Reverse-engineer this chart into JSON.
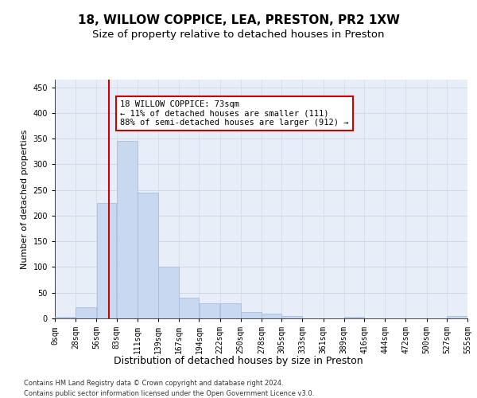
{
  "title": "18, WILLOW COPPICE, LEA, PRESTON, PR2 1XW",
  "subtitle": "Size of property relative to detached houses in Preston",
  "xlabel": "Distribution of detached houses by size in Preston",
  "ylabel": "Number of detached properties",
  "bar_color": "#c8d8f0",
  "bar_edge_color": "#a0b8d8",
  "vline_x": 73,
  "vline_color": "#cc0000",
  "annotation_line1": "18 WILLOW COPPICE: 73sqm",
  "annotation_line2": "← 11% of detached houses are smaller (111)",
  "annotation_line3": "88% of semi-detached houses are larger (912) →",
  "annotation_box_facecolor": "#ffffff",
  "annotation_box_edgecolor": "#cc0000",
  "bins": [
    0,
    28,
    56,
    83,
    111,
    139,
    167,
    194,
    222,
    250,
    278,
    305,
    333,
    361,
    389,
    416,
    444,
    472,
    500,
    527,
    555
  ],
  "bar_heights": [
    3,
    22,
    225,
    345,
    245,
    100,
    40,
    30,
    29,
    13,
    9,
    4,
    0,
    0,
    3,
    0,
    0,
    0,
    0,
    4
  ],
  "ylim": [
    0,
    465
  ],
  "yticks": [
    0,
    50,
    100,
    150,
    200,
    250,
    300,
    350,
    400,
    450
  ],
  "grid_color": "#d0d8e8",
  "plot_bg_color": "#e8eef8",
  "fig_bg_color": "#ffffff",
  "footnote1": "Contains HM Land Registry data © Crown copyright and database right 2024.",
  "footnote2": "Contains public sector information licensed under the Open Government Licence v3.0.",
  "title_fontsize": 11,
  "subtitle_fontsize": 9.5,
  "xlabel_fontsize": 9,
  "ylabel_fontsize": 8,
  "tick_fontsize": 7,
  "annotation_fontsize": 7.5,
  "footnote_fontsize": 6
}
